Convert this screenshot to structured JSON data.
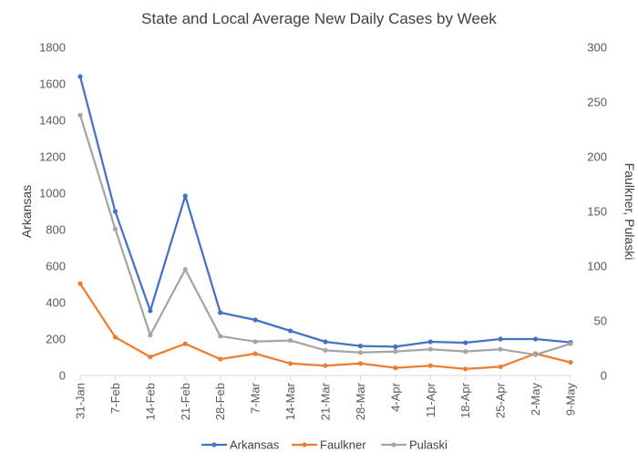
{
  "chart_data": {
    "type": "line",
    "title": "State and Local Average New Daily Cases by Week",
    "ylabel_left": "Arkansas",
    "ylabel_right": "Faulkner, Pulaski",
    "xlabel": "",
    "categories": [
      "31-Jan",
      "7-Feb",
      "14-Feb",
      "21-Feb",
      "28-Feb",
      "7-Mar",
      "14-Mar",
      "21-Mar",
      "28-Mar",
      "4-Apr",
      "11-Apr",
      "18-Apr",
      "25-Apr",
      "2-May",
      "9-May"
    ],
    "ylim_left": [
      0,
      1800
    ],
    "yticks_left": [
      0,
      200,
      400,
      600,
      800,
      1000,
      1200,
      1400,
      1600,
      1800
    ],
    "ylim_right": [
      0,
      300
    ],
    "yticks_right": [
      0,
      50,
      100,
      150,
      200,
      250,
      300
    ],
    "grid": false,
    "legend_position": "bottom",
    "series": [
      {
        "name": "Arkansas",
        "axis": "left",
        "color": "#4472C4",
        "values": [
          1640,
          900,
          355,
          985,
          345,
          305,
          245,
          185,
          162,
          158,
          185,
          180,
          200,
          200,
          182
        ]
      },
      {
        "name": "Faulkner",
        "axis": "right",
        "color": "#ED7D31",
        "values": [
          84,
          35,
          17,
          29,
          15,
          20,
          11,
          9,
          11,
          7,
          9,
          6,
          8,
          20,
          12
        ]
      },
      {
        "name": "Pulaski",
        "axis": "right",
        "color": "#A5A5A5",
        "values": [
          238,
          134,
          37,
          97,
          36,
          31,
          32,
          23,
          21,
          22,
          24,
          22,
          24,
          19,
          29
        ]
      }
    ]
  }
}
